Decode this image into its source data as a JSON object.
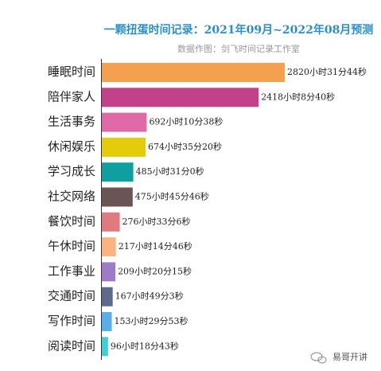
{
  "chart_data": {
    "type": "bar",
    "orientation": "horizontal",
    "title": "一颗扭蛋时间记录：2021年09月~2022年08月预测",
    "subtitle": "数据作图：剑飞时间记录工作室",
    "watermark": "易哥开讲",
    "categories": [
      "睡眠时间",
      "陪伴家人",
      "生活事务",
      "休闲娱乐",
      "学习成长",
      "社交网络",
      "餐饮时间",
      "午休时间",
      "工作事业",
      "交通时间",
      "写作时间",
      "阅读时间"
    ],
    "values": [
      2820.5289,
      2418.1444,
      692.1772,
      674.5889,
      485.5167,
      475.7628,
      276.5517,
      217.2461,
      209.3375,
      167.8175,
      153.4981,
      96.3119
    ],
    "value_labels": [
      "2820小时31分44秒",
      "2418小时8分40秒",
      "692小时10分38秒",
      "674小时35分20秒",
      "485小时31分0秒",
      "475小时45分46秒",
      "276小时33分6秒",
      "217小时14分46秒",
      "209小时20分15秒",
      "167小时49分3秒",
      "153小时29分53秒",
      "96小时18分43秒"
    ],
    "colors": [
      "#f5a04f",
      "#c2418a",
      "#e06aa8",
      "#e4cc0b",
      "#0e9fa0",
      "#6b5454",
      "#e07a80",
      "#fbb383",
      "#9d7bc7",
      "#5d6a8c",
      "#5aaeea",
      "#3fcfd5"
    ]
  }
}
